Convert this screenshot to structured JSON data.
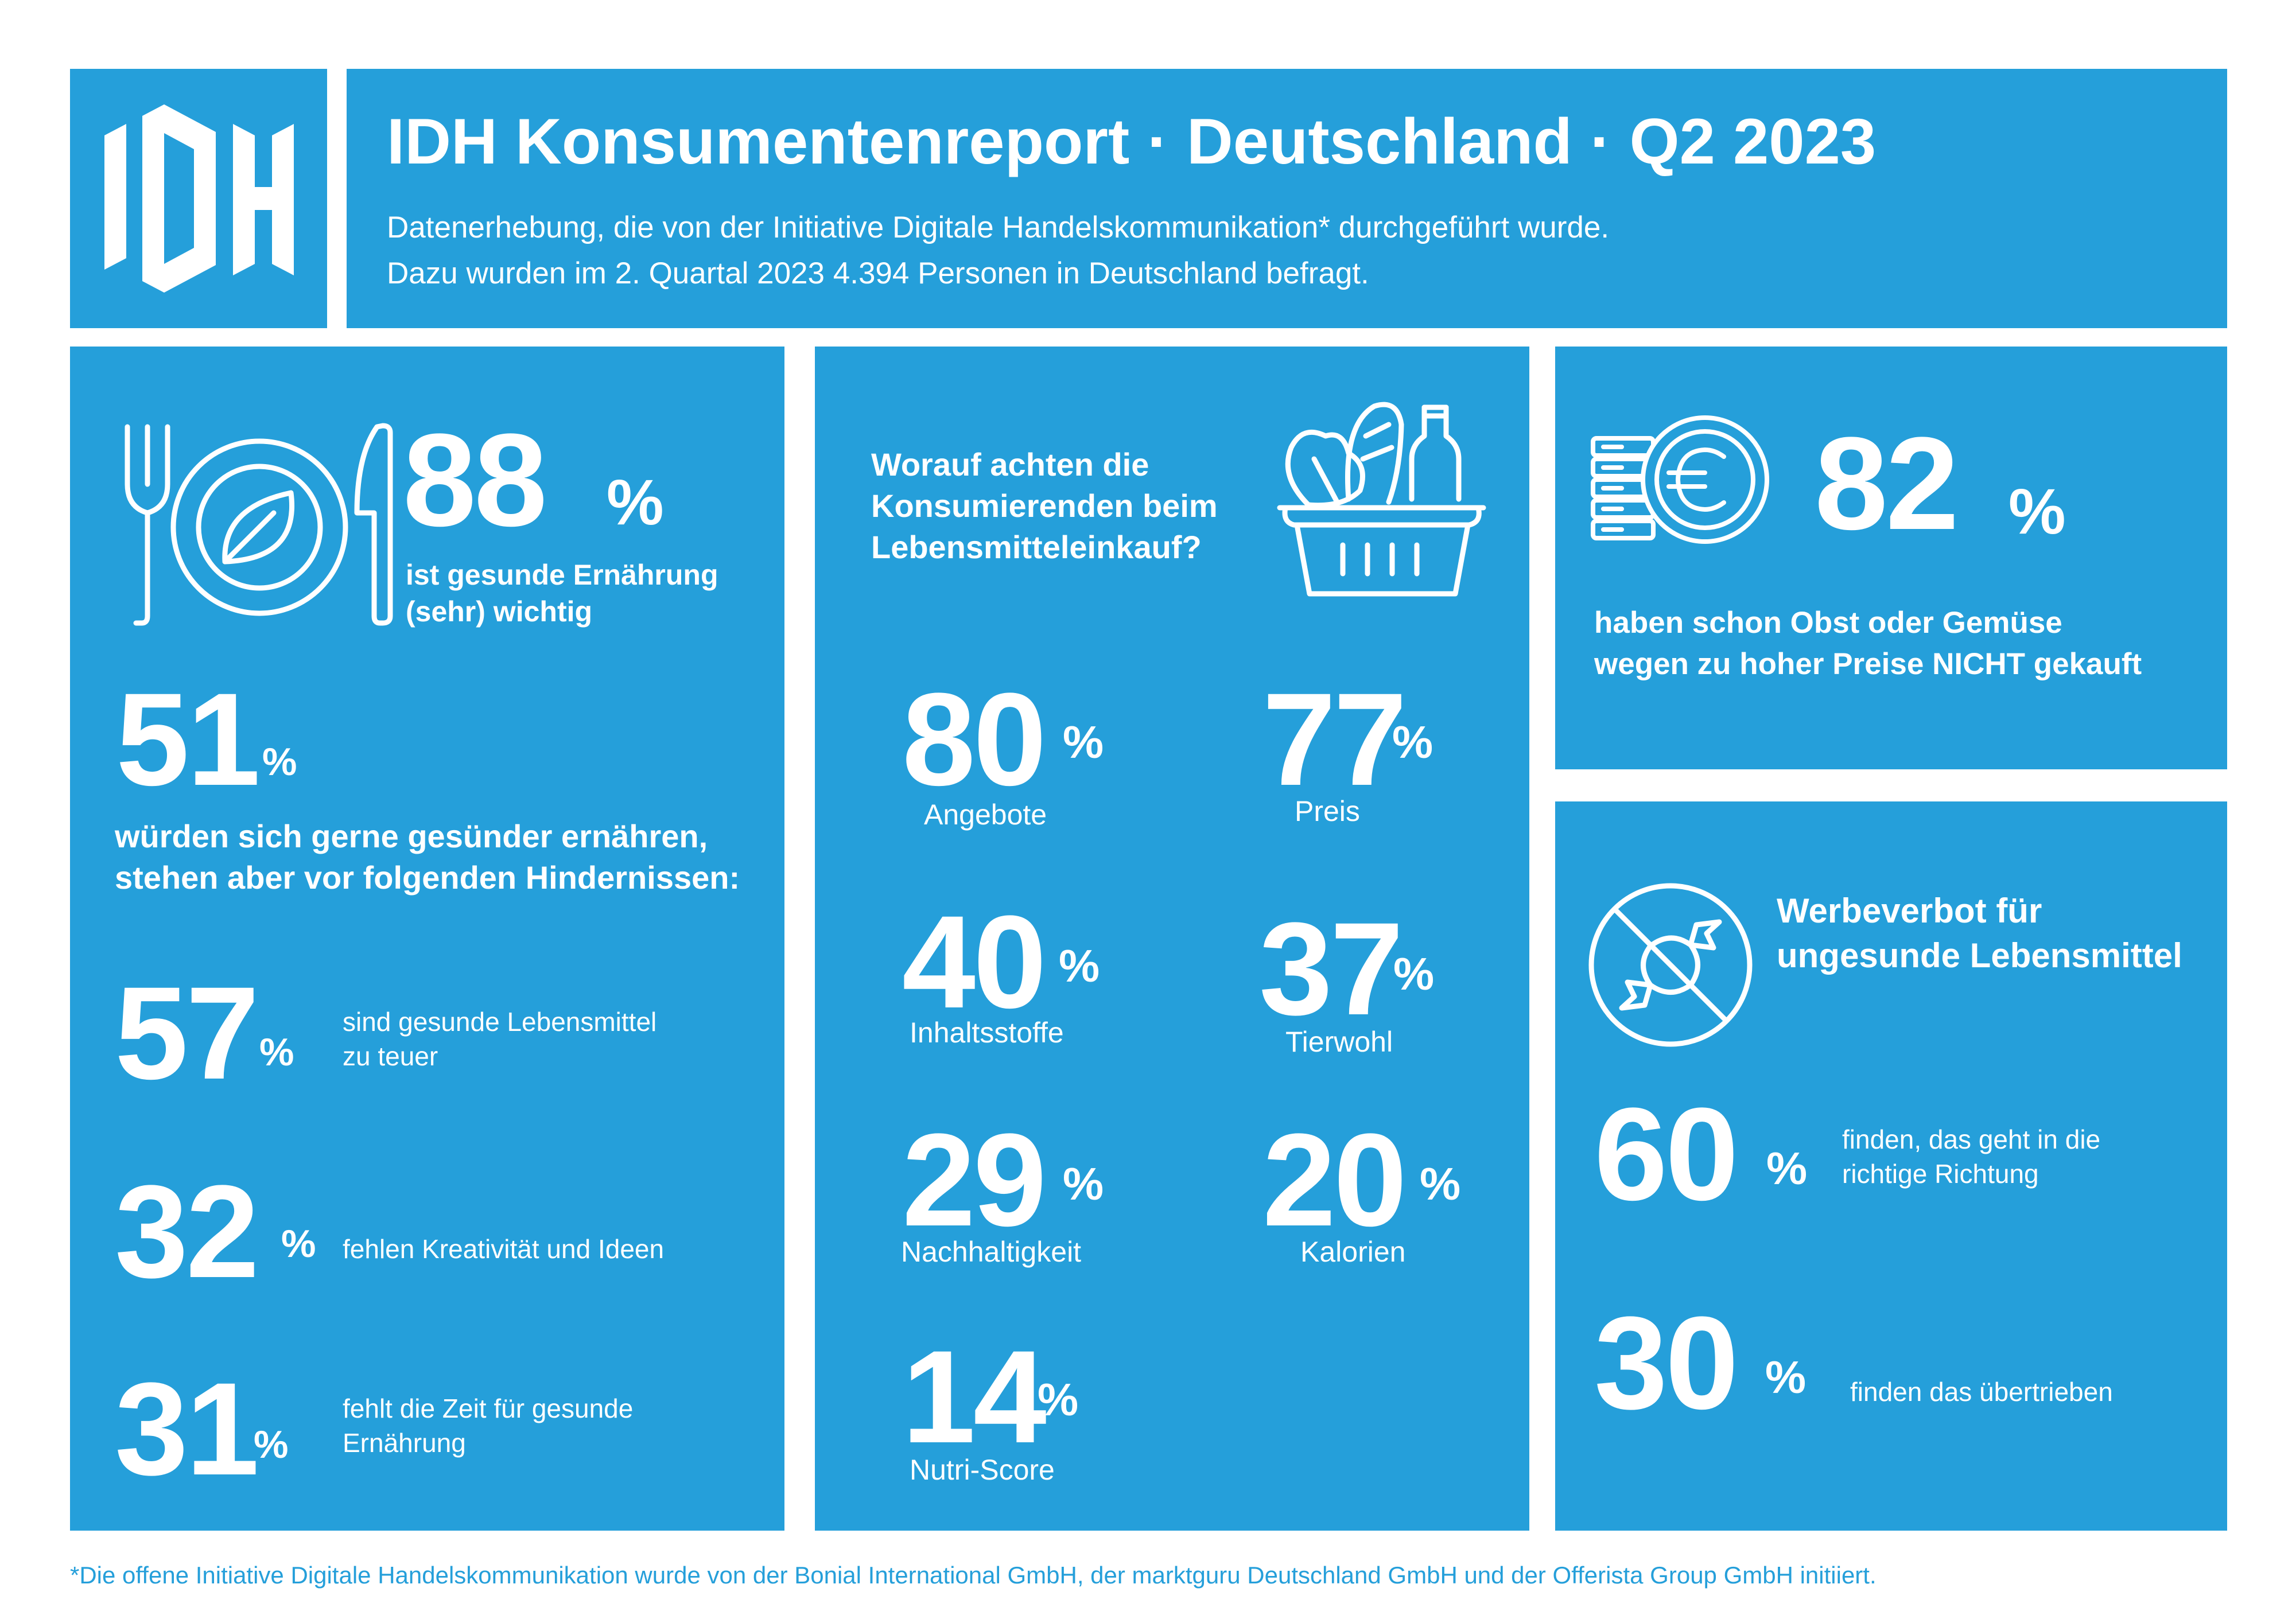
{
  "header": {
    "logo_text": "IDH",
    "title": "IDH Konsumentenreport · Deutschland · Q2 2023",
    "subtitle_line1": "Datenerhebung, die von der Initiative Digitale Handelskommunikation* durchgeführt wurde.",
    "subtitle_line2": "Dazu wurden im 2. Quartal 2023 4.394 Personen in Deutschland befragt."
  },
  "panel_health": {
    "icon": "plate-cutlery-icon",
    "stat_main": {
      "value": "88",
      "unit": "%",
      "line1": "ist gesunde Ernährung",
      "line2": "(sehr) wichtig"
    },
    "stat_wish": {
      "value": "51",
      "unit": "%",
      "line1": "würden sich gerne gesünder ernähren,",
      "line2": "stehen aber vor folgenden Hindernissen:"
    },
    "obstacles": [
      {
        "value": "57",
        "unit": "%",
        "line1": "sind gesunde Lebensmittel",
        "line2": "zu teuer"
      },
      {
        "value": "32",
        "unit": "%",
        "line1": "fehlen Kreativität und Ideen",
        "line2": ""
      },
      {
        "value": "31",
        "unit": "%",
        "line1": "fehlt die Zeit für gesunde",
        "line2": "Ernährung"
      }
    ]
  },
  "panel_shopping": {
    "icon": "grocery-basket-icon",
    "question_line1": "Worauf achten die",
    "question_line2": "Konsumierenden beim",
    "question_line3": "Lebensmitteleinkauf?",
    "criteria": [
      {
        "value": "80",
        "unit": "%",
        "label": "Angebote"
      },
      {
        "value": "77",
        "unit": "%",
        "label": "Preis"
      },
      {
        "value": "40",
        "unit": "%",
        "label": "Inhaltsstoffe"
      },
      {
        "value": "37",
        "unit": "%",
        "label": "Tierwohl"
      },
      {
        "value": "29",
        "unit": "%",
        "label": "Nachhaltigkeit"
      },
      {
        "value": "20",
        "unit": "%",
        "label": "Kalorien"
      },
      {
        "value": "14",
        "unit": "%",
        "label": "Nutri-Score"
      }
    ]
  },
  "panel_price": {
    "icon": "euro-coins-icon",
    "value": "82",
    "unit": "%",
    "line1": "haben schon Obst oder Gemüse",
    "line2_pre": "wegen zu hoher Preise ",
    "line2_emph": "NICHT",
    "line2_post": " gekauft"
  },
  "panel_ad_ban": {
    "icon": "no-candy-icon",
    "title_line1": "Werbeverbot für",
    "title_line2": "ungesunde Lebensmittel",
    "stats": [
      {
        "value": "60",
        "unit": "%",
        "line1": "finden, das geht in die",
        "line2": "richtige Richtung"
      },
      {
        "value": "30",
        "unit": "%",
        "line1": "finden das übertrieben",
        "line2": ""
      }
    ]
  },
  "footnote": "*Die offene Initiative Digitale Handelskommunikation wurde von der Bonial International GmbH, der marktguru Deutschland GmbH und der Offerista Group GmbH initiiert.",
  "colors": {
    "brand_blue": "#259fda",
    "white": "#ffffff"
  }
}
